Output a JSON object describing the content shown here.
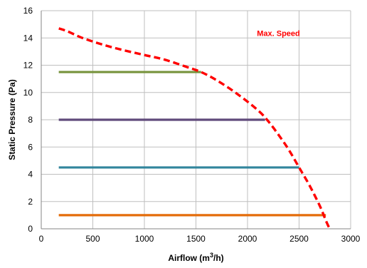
{
  "chart_data": {
    "type": "line",
    "title": "",
    "xlabel": "Airflow (m",
    "xlabel_sup": "3",
    "xlabel_suffix": "/h)",
    "ylabel": "Static Pressure (Pa)",
    "xlim": [
      0,
      3000
    ],
    "ylim": [
      0,
      16
    ],
    "xticks": [
      0,
      500,
      1000,
      1500,
      2000,
      2500,
      3000
    ],
    "yticks": [
      0,
      2,
      4,
      6,
      8,
      10,
      12,
      14,
      16
    ],
    "grid": true,
    "legend": "none",
    "max_speed_curve": {
      "label": "Max. Speed",
      "color": "#ff0000",
      "style": "dashed",
      "points": [
        [
          170,
          14.7
        ],
        [
          250,
          14.5
        ],
        [
          400,
          14.0
        ],
        [
          600,
          13.5
        ],
        [
          800,
          13.1
        ],
        [
          1000,
          12.75
        ],
        [
          1200,
          12.4
        ],
        [
          1400,
          11.9
        ],
        [
          1550,
          11.5
        ],
        [
          1700,
          10.9
        ],
        [
          1900,
          9.9
        ],
        [
          2100,
          8.7
        ],
        [
          2200,
          7.9
        ],
        [
          2300,
          6.9
        ],
        [
          2400,
          5.8
        ],
        [
          2500,
          4.5
        ],
        [
          2600,
          3.2
        ],
        [
          2700,
          1.7
        ],
        [
          2760,
          0.6
        ],
        [
          2790,
          0.1
        ]
      ]
    },
    "series": [
      {
        "color": "#77933c",
        "x": [
          170,
          1550
        ],
        "y": [
          11.5,
          11.5
        ]
      },
      {
        "color": "#604a7b",
        "x": [
          170,
          2170
        ],
        "y": [
          8.0,
          8.0
        ]
      },
      {
        "color": "#31859c",
        "x": [
          170,
          2500
        ],
        "y": [
          4.5,
          4.5
        ]
      },
      {
        "color": "#e46c0a",
        "x": [
          170,
          2760
        ],
        "y": [
          1.0,
          1.0
        ]
      }
    ]
  }
}
